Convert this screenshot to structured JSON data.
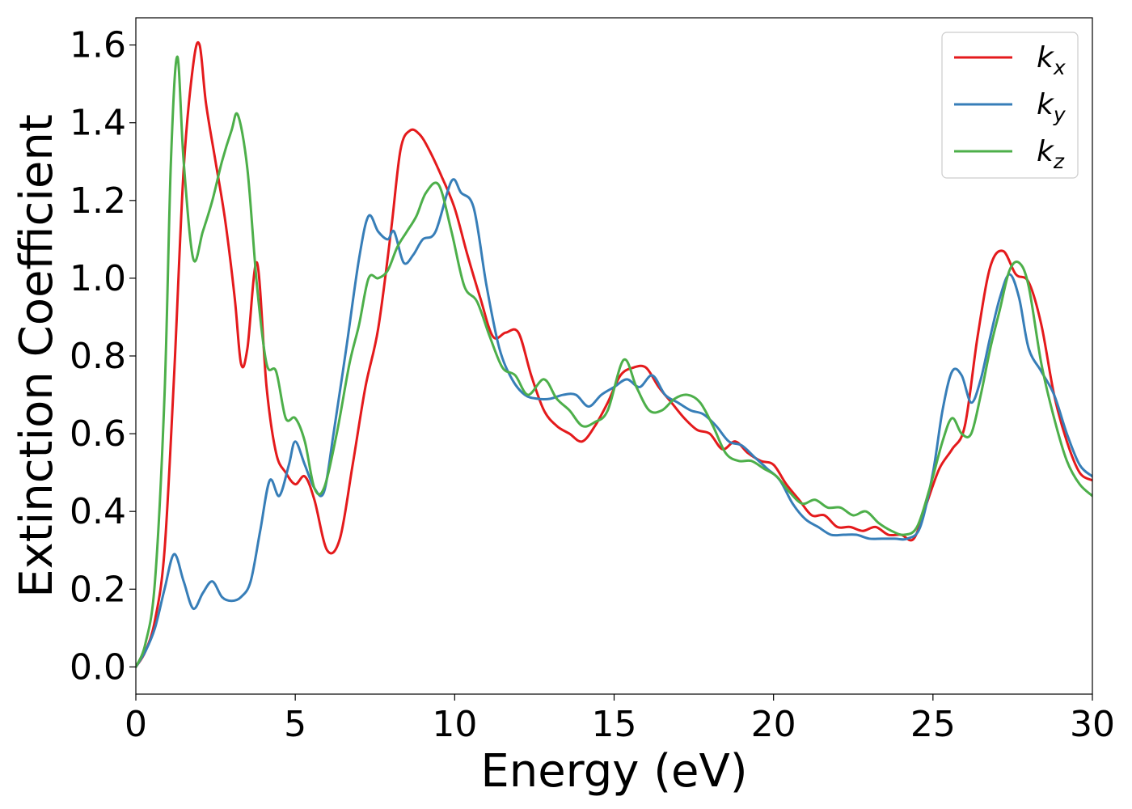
{
  "chart_data": {
    "type": "line",
    "title": "",
    "xlabel": "Energy (eV)",
    "ylabel": "Extinction Coefficient",
    "xlim": [
      0,
      30
    ],
    "ylim": [
      -0.07,
      1.67
    ],
    "xticks": [
      0,
      5,
      10,
      15,
      20,
      25,
      30
    ],
    "xtick_labels": [
      "0",
      "5",
      "10",
      "15",
      "20",
      "25",
      "30"
    ],
    "yticks": [
      0.0,
      0.2,
      0.4,
      0.6,
      0.8,
      1.0,
      1.2,
      1.4,
      1.6
    ],
    "ytick_labels": [
      "0.0",
      "0.2",
      "0.4",
      "0.6",
      "0.8",
      "1.0",
      "1.2",
      "1.4",
      "1.6"
    ],
    "grid": false,
    "legend_position": "top-right",
    "series": [
      {
        "name": "k",
        "subscript": "x",
        "color": "#e41a1c",
        "x": [
          0,
          0.3,
          0.6,
          0.9,
          1.2,
          1.5,
          1.8,
          2.0,
          2.2,
          2.5,
          2.8,
          3.1,
          3.3,
          3.5,
          3.8,
          4.1,
          4.4,
          4.7,
          5.0,
          5.3,
          5.6,
          6.0,
          6.4,
          6.8,
          7.2,
          7.6,
          8.0,
          8.3,
          8.6,
          8.9,
          9.2,
          9.6,
          10.0,
          10.4,
          10.8,
          11.2,
          11.6,
          12.0,
          12.4,
          12.8,
          13.2,
          13.6,
          14.0,
          14.4,
          14.8,
          15.2,
          15.6,
          16.0,
          16.4,
          16.8,
          17.2,
          17.6,
          18.0,
          18.4,
          18.8,
          19.2,
          19.6,
          20.0,
          20.4,
          20.8,
          21.2,
          21.6,
          22.0,
          22.4,
          22.8,
          23.2,
          23.6,
          24.0,
          24.4,
          24.8,
          25.2,
          25.6,
          26.0,
          26.4,
          26.8,
          27.2,
          27.6,
          28.0,
          28.4,
          28.8,
          29.2,
          29.6,
          30.0
        ],
        "y": [
          0.0,
          0.04,
          0.12,
          0.3,
          0.75,
          1.28,
          1.55,
          1.6,
          1.45,
          1.3,
          1.15,
          0.95,
          0.78,
          0.82,
          1.04,
          0.72,
          0.55,
          0.5,
          0.47,
          0.49,
          0.43,
          0.3,
          0.33,
          0.52,
          0.72,
          0.87,
          1.12,
          1.33,
          1.38,
          1.37,
          1.33,
          1.26,
          1.18,
          1.06,
          0.95,
          0.85,
          0.86,
          0.86,
          0.75,
          0.66,
          0.62,
          0.6,
          0.58,
          0.62,
          0.68,
          0.75,
          0.77,
          0.77,
          0.72,
          0.68,
          0.64,
          0.61,
          0.6,
          0.56,
          0.58,
          0.55,
          0.53,
          0.52,
          0.47,
          0.43,
          0.39,
          0.39,
          0.36,
          0.36,
          0.35,
          0.36,
          0.34,
          0.34,
          0.33,
          0.42,
          0.51,
          0.56,
          0.62,
          0.85,
          1.03,
          1.07,
          1.01,
          0.99,
          0.88,
          0.7,
          0.58,
          0.5,
          0.48
        ]
      },
      {
        "name": "k",
        "subscript": "y",
        "color": "#377eb8",
        "x": [
          0,
          0.3,
          0.6,
          0.9,
          1.2,
          1.5,
          1.8,
          2.1,
          2.4,
          2.7,
          3.0,
          3.3,
          3.6,
          3.9,
          4.2,
          4.5,
          4.8,
          5.0,
          5.3,
          5.6,
          5.9,
          6.2,
          6.6,
          7.0,
          7.3,
          7.6,
          7.9,
          8.1,
          8.4,
          8.7,
          9.0,
          9.4,
          9.9,
          10.2,
          10.6,
          11.0,
          11.4,
          11.8,
          12.2,
          12.6,
          13.0,
          13.4,
          13.8,
          14.2,
          14.6,
          15.0,
          15.4,
          15.8,
          16.2,
          16.6,
          17.0,
          17.4,
          17.8,
          18.2,
          18.6,
          19.0,
          19.4,
          19.8,
          20.2,
          20.6,
          21.0,
          21.4,
          21.8,
          22.2,
          22.6,
          23.0,
          23.4,
          23.8,
          24.2,
          24.6,
          25.0,
          25.3,
          25.6,
          25.9,
          26.2,
          26.5,
          26.8,
          27.1,
          27.4,
          27.7,
          28.0,
          28.4,
          28.8,
          29.2,
          29.6,
          30.0
        ],
        "y": [
          0.0,
          0.04,
          0.1,
          0.2,
          0.29,
          0.22,
          0.15,
          0.19,
          0.22,
          0.18,
          0.17,
          0.18,
          0.22,
          0.35,
          0.48,
          0.44,
          0.52,
          0.58,
          0.52,
          0.46,
          0.45,
          0.6,
          0.82,
          1.05,
          1.16,
          1.12,
          1.1,
          1.12,
          1.04,
          1.06,
          1.1,
          1.12,
          1.25,
          1.22,
          1.18,
          0.98,
          0.82,
          0.74,
          0.7,
          0.69,
          0.69,
          0.7,
          0.7,
          0.67,
          0.7,
          0.72,
          0.74,
          0.72,
          0.75,
          0.7,
          0.68,
          0.66,
          0.65,
          0.62,
          0.58,
          0.57,
          0.54,
          0.51,
          0.48,
          0.42,
          0.38,
          0.36,
          0.34,
          0.34,
          0.34,
          0.33,
          0.33,
          0.33,
          0.33,
          0.36,
          0.5,
          0.66,
          0.76,
          0.75,
          0.68,
          0.74,
          0.85,
          0.95,
          1.01,
          0.95,
          0.82,
          0.76,
          0.7,
          0.6,
          0.52,
          0.49
        ]
      },
      {
        "name": "k",
        "subscript": "z",
        "color": "#4daf4a",
        "x": [
          0,
          0.3,
          0.6,
          0.9,
          1.1,
          1.3,
          1.5,
          1.8,
          2.1,
          2.4,
          2.7,
          3.0,
          3.2,
          3.5,
          3.8,
          4.1,
          4.4,
          4.7,
          5.0,
          5.3,
          5.6,
          5.9,
          6.3,
          6.7,
          7.0,
          7.3,
          7.6,
          7.9,
          8.2,
          8.5,
          8.8,
          9.1,
          9.5,
          9.9,
          10.3,
          10.7,
          11.1,
          11.5,
          11.9,
          12.3,
          12.8,
          13.2,
          13.6,
          14.0,
          14.4,
          14.8,
          15.3,
          15.7,
          16.1,
          16.5,
          16.9,
          17.3,
          17.7,
          18.1,
          18.5,
          18.9,
          19.3,
          19.7,
          20.1,
          20.5,
          20.9,
          21.3,
          21.7,
          22.1,
          22.5,
          22.9,
          23.3,
          23.7,
          24.1,
          24.5,
          24.9,
          25.3,
          25.6,
          25.9,
          26.2,
          26.5,
          26.8,
          27.1,
          27.4,
          27.7,
          28.0,
          28.4,
          28.8,
          29.2,
          29.6,
          30.0
        ],
        "y": [
          0.0,
          0.06,
          0.22,
          0.7,
          1.3,
          1.57,
          1.3,
          1.05,
          1.12,
          1.2,
          1.3,
          1.38,
          1.42,
          1.28,
          0.98,
          0.78,
          0.76,
          0.64,
          0.64,
          0.58,
          0.46,
          0.46,
          0.6,
          0.78,
          0.88,
          1.0,
          1.0,
          1.02,
          1.08,
          1.12,
          1.16,
          1.22,
          1.24,
          1.12,
          0.98,
          0.94,
          0.85,
          0.77,
          0.75,
          0.7,
          0.74,
          0.69,
          0.66,
          0.62,
          0.63,
          0.66,
          0.79,
          0.72,
          0.66,
          0.66,
          0.69,
          0.7,
          0.68,
          0.62,
          0.55,
          0.53,
          0.53,
          0.51,
          0.49,
          0.45,
          0.42,
          0.43,
          0.41,
          0.41,
          0.39,
          0.4,
          0.37,
          0.35,
          0.34,
          0.36,
          0.46,
          0.58,
          0.64,
          0.6,
          0.6,
          0.7,
          0.82,
          0.92,
          1.02,
          1.04,
          0.98,
          0.78,
          0.64,
          0.53,
          0.47,
          0.44
        ]
      }
    ]
  }
}
